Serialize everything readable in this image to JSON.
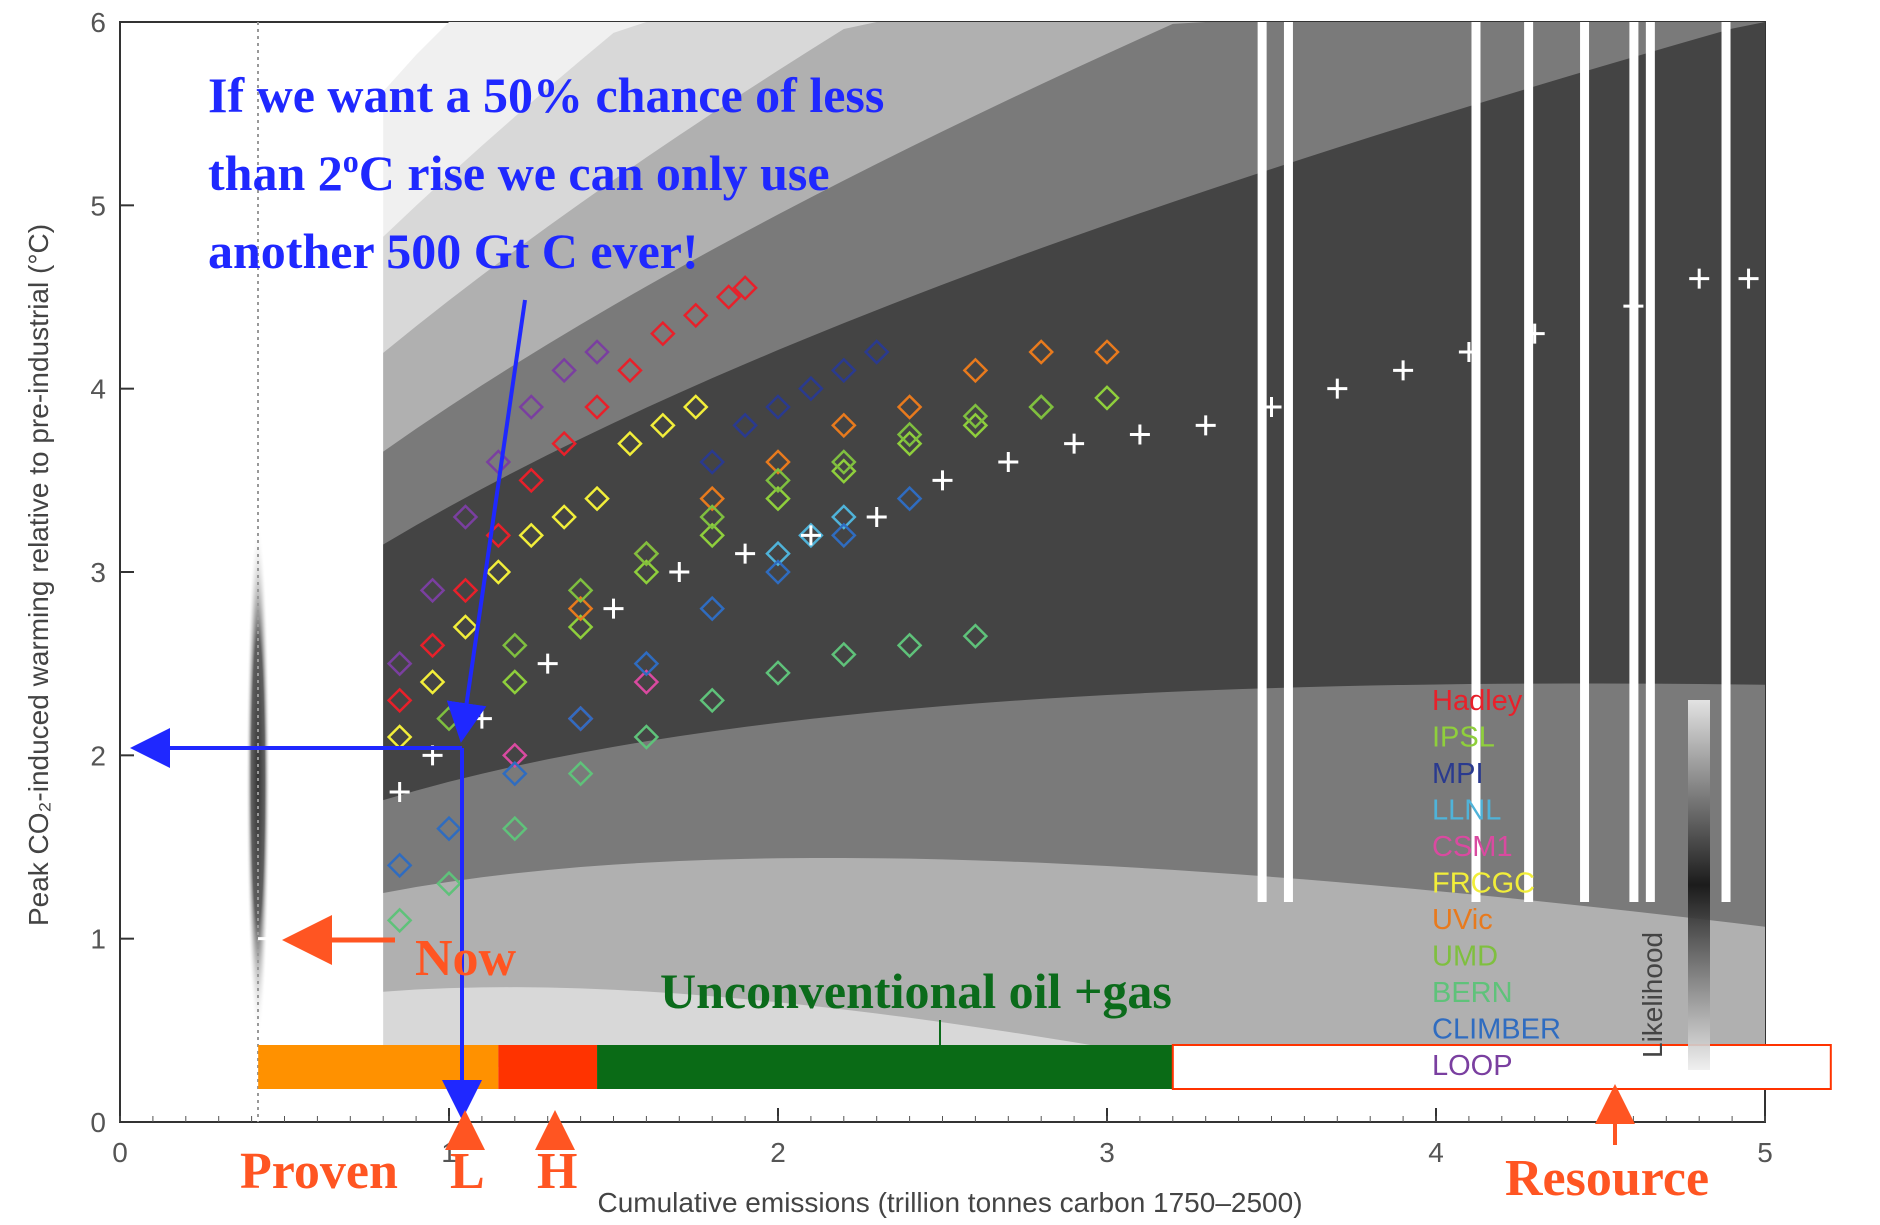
{
  "chart_data": {
    "type": "scatter",
    "xlabel": "Cumulative emissions (trillion tonnes carbon 1750–2500)",
    "ylabel": "Peak CO₂-induced warming relative to pre-industrial (°C)",
    "xlim": [
      0,
      5
    ],
    "ylim": [
      0,
      6
    ],
    "x_ticks": [
      "0",
      "1",
      "2",
      "3",
      "4",
      "5"
    ],
    "y_ticks": [
      "0",
      "1",
      "2",
      "3",
      "4",
      "5",
      "6"
    ],
    "legend_title": "Likelihood",
    "legend_placement": "bottom-right",
    "series": [
      {
        "name": "Hadley",
        "color": "#e8202a",
        "points": [
          [
            0.85,
            2.3
          ],
          [
            0.95,
            2.6
          ],
          [
            1.05,
            2.9
          ],
          [
            1.15,
            3.2
          ],
          [
            1.25,
            3.5
          ],
          [
            1.35,
            3.7
          ],
          [
            1.45,
            3.9
          ],
          [
            1.55,
            4.1
          ],
          [
            1.65,
            4.3
          ],
          [
            1.75,
            4.4
          ],
          [
            1.85,
            4.5
          ],
          [
            1.9,
            4.55
          ]
        ]
      },
      {
        "name": "IPSL",
        "color": "#8fcf3c",
        "points": [
          [
            1.2,
            2.4
          ],
          [
            1.4,
            2.7
          ],
          [
            1.6,
            3.0
          ],
          [
            1.8,
            3.2
          ],
          [
            2.0,
            3.4
          ],
          [
            2.2,
            3.55
          ],
          [
            2.4,
            3.7
          ],
          [
            2.6,
            3.8
          ],
          [
            2.8,
            3.9
          ],
          [
            3.0,
            3.95
          ]
        ]
      },
      {
        "name": "MPI",
        "color": "#2a3a8f",
        "points": [
          [
            1.8,
            3.6
          ],
          [
            1.9,
            3.8
          ],
          [
            2.0,
            3.9
          ],
          [
            2.1,
            4.0
          ],
          [
            2.2,
            4.1
          ],
          [
            2.3,
            4.2
          ]
        ]
      },
      {
        "name": "LLNL",
        "color": "#4fb3d9",
        "points": [
          [
            2.0,
            3.1
          ],
          [
            2.1,
            3.2
          ],
          [
            2.2,
            3.3
          ]
        ]
      },
      {
        "name": "CSM1",
        "color": "#d94aa0",
        "points": [
          [
            1.2,
            2.0
          ],
          [
            1.4,
            2.2
          ],
          [
            1.6,
            2.4
          ]
        ]
      },
      {
        "name": "FRCGC",
        "color": "#f2ee3a",
        "points": [
          [
            0.85,
            2.1
          ],
          [
            0.95,
            2.4
          ],
          [
            1.05,
            2.7
          ],
          [
            1.15,
            3.0
          ],
          [
            1.25,
            3.2
          ],
          [
            1.35,
            3.3
          ],
          [
            1.45,
            3.4
          ],
          [
            1.55,
            3.7
          ],
          [
            1.65,
            3.8
          ],
          [
            1.75,
            3.9
          ]
        ]
      },
      {
        "name": "UVic",
        "color": "#e87a1d",
        "points": [
          [
            1.4,
            2.8
          ],
          [
            1.6,
            3.1
          ],
          [
            1.8,
            3.4
          ],
          [
            2.0,
            3.6
          ],
          [
            2.2,
            3.8
          ],
          [
            2.4,
            3.9
          ],
          [
            2.6,
            4.1
          ],
          [
            2.8,
            4.2
          ],
          [
            3.0,
            4.2
          ]
        ]
      },
      {
        "name": "UMD",
        "color": "#7fbf3f",
        "points": [
          [
            1.0,
            2.2
          ],
          [
            1.2,
            2.6
          ],
          [
            1.4,
            2.9
          ],
          [
            1.6,
            3.1
          ],
          [
            1.8,
            3.3
          ],
          [
            2.0,
            3.5
          ],
          [
            2.2,
            3.6
          ],
          [
            2.4,
            3.75
          ],
          [
            2.6,
            3.85
          ],
          [
            2.8,
            3.9
          ]
        ]
      },
      {
        "name": "BERN",
        "color": "#5fc27a",
        "points": [
          [
            0.85,
            1.1
          ],
          [
            1.0,
            1.3
          ],
          [
            1.2,
            1.6
          ],
          [
            1.4,
            1.9
          ],
          [
            1.6,
            2.1
          ],
          [
            1.8,
            2.3
          ],
          [
            2.0,
            2.45
          ],
          [
            2.2,
            2.55
          ],
          [
            2.4,
            2.6
          ],
          [
            2.6,
            2.65
          ]
        ]
      },
      {
        "name": "CLIMBER",
        "color": "#2f6cc0",
        "points": [
          [
            0.85,
            1.4
          ],
          [
            1.0,
            1.6
          ],
          [
            1.2,
            1.9
          ],
          [
            1.4,
            2.2
          ],
          [
            1.6,
            2.5
          ],
          [
            1.8,
            2.8
          ],
          [
            2.0,
            3.0
          ],
          [
            2.2,
            3.2
          ],
          [
            2.4,
            3.4
          ]
        ]
      },
      {
        "name": "LOOP",
        "color": "#7a3fa0",
        "points": [
          [
            0.85,
            2.5
          ],
          [
            0.95,
            2.9
          ],
          [
            1.05,
            3.3
          ],
          [
            1.15,
            3.6
          ],
          [
            1.25,
            3.9
          ],
          [
            1.35,
            4.1
          ],
          [
            1.45,
            4.2
          ]
        ]
      }
    ],
    "white_crosses": [
      [
        0.85,
        1.8
      ],
      [
        0.95,
        2.0
      ],
      [
        1.1,
        2.2
      ],
      [
        1.3,
        2.5
      ],
      [
        1.5,
        2.8
      ],
      [
        1.7,
        3.0
      ],
      [
        1.9,
        3.1
      ],
      [
        2.1,
        3.2
      ],
      [
        2.3,
        3.3
      ],
      [
        2.5,
        3.5
      ],
      [
        2.7,
        3.6
      ],
      [
        2.9,
        3.7
      ],
      [
        3.1,
        3.75
      ],
      [
        3.3,
        3.8
      ],
      [
        3.5,
        3.9
      ],
      [
        3.7,
        4.0
      ],
      [
        3.9,
        4.1
      ],
      [
        4.1,
        4.2
      ],
      [
        4.3,
        4.3
      ],
      [
        4.6,
        4.45
      ],
      [
        4.8,
        4.6
      ],
      [
        4.95,
        4.6
      ]
    ],
    "colors": {
      "blue_annotation": "#1f28ff",
      "red_annotation": "#ff5522",
      "green_annotation": "#0b6b1b",
      "bar_proven": "#ff9100",
      "bar_high": "#ff3300",
      "bar_unconventional": "#0a6b16"
    },
    "ranges": [
      {
        "start": 0.42,
        "end": 1.15,
        "color": "#ff9100"
      },
      {
        "start": 1.15,
        "end": 1.45,
        "color": "#ff3300"
      },
      {
        "start": 1.45,
        "end": 3.2,
        "color": "#0a6b16"
      },
      {
        "start": 3.2,
        "end": 5.2,
        "color": "#ffffff"
      }
    ],
    "now_point": [
      0.45,
      1.0
    ],
    "target_point": [
      1.0,
      2.05
    ]
  },
  "annotations": {
    "headline_line1": "If we want a 50% chance of less",
    "headline_line2a": "than 2",
    "headline_line2_sup": "o",
    "headline_line2b": "C rise we can only use",
    "headline_line3": "another 500 Gt C ever!",
    "now": "Now",
    "unconventional": "Unconventional oil +gas",
    "proven": "Proven",
    "low": "L",
    "high": "H",
    "resource": "Resource"
  },
  "legend": [
    "Hadley",
    "IPSL",
    "MPI",
    "LLNL",
    "CSM1",
    "FRCGC",
    "UVic",
    "UMD",
    "BERN",
    "CLIMBER",
    "LOOP"
  ],
  "legend_colors": [
    "#e8202a",
    "#8fcf3c",
    "#2a3a8f",
    "#4fb3d9",
    "#d94aa0",
    "#f2ee3a",
    "#e87a1d",
    "#7fbf3f",
    "#5fc27a",
    "#2f6cc0",
    "#7a3fa0"
  ]
}
